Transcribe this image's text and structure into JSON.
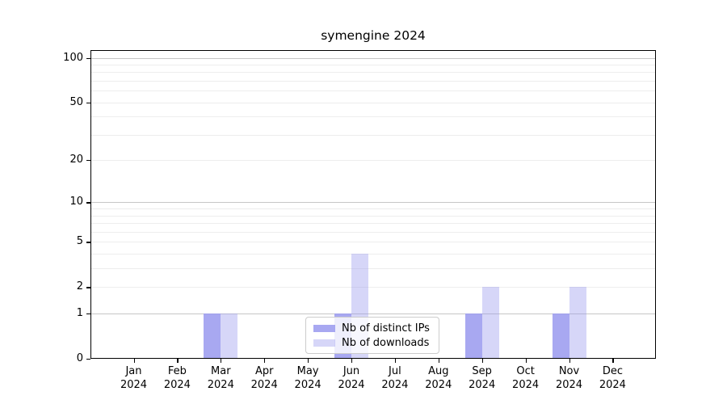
{
  "title": "symengine 2024",
  "legend": {
    "items": [
      {
        "label": "Nb of distinct IPs",
        "color": "rgba(153,153,238,0.85)"
      },
      {
        "label": "Nb of downloads",
        "color": "rgba(153,153,238,0.40)"
      }
    ]
  },
  "chart_data": {
    "type": "bar",
    "title": "symengine 2024",
    "categories": [
      "Jan 2024",
      "Feb 2024",
      "Mar 2024",
      "Apr 2024",
      "May 2024",
      "Jun 2024",
      "Jul 2024",
      "Aug 2024",
      "Sep 2024",
      "Oct 2024",
      "Nov 2024",
      "Dec 2024"
    ],
    "x_tick_months": [
      "Jan",
      "Feb",
      "Mar",
      "Apr",
      "May",
      "Jun",
      "Jul",
      "Aug",
      "Sep",
      "Oct",
      "Nov",
      "Dec"
    ],
    "x_tick_year": "2024",
    "series": [
      {
        "name": "Nb of distinct IPs",
        "color": "rgba(153,153,238,0.85)",
        "values": [
          0,
          0,
          1,
          0,
          0,
          1,
          0,
          0,
          1,
          0,
          1,
          0
        ]
      },
      {
        "name": "Nb of downloads",
        "color": "rgba(153,153,238,0.40)",
        "values": [
          0,
          0,
          1,
          0,
          0,
          4,
          0,
          0,
          2,
          0,
          2,
          0
        ]
      }
    ],
    "xlabel": "",
    "ylabel": "",
    "yscale": "log10(1+x)",
    "ylim": [
      0,
      112.7
    ],
    "yticks_labeled": [
      0,
      1,
      2,
      5,
      10,
      20,
      50,
      100
    ],
    "gridlines_major": [
      1,
      10,
      100
    ],
    "gridlines_minor": [
      2,
      3,
      4,
      5,
      6,
      7,
      8,
      9,
      20,
      30,
      40,
      50,
      60,
      70,
      80,
      90
    ],
    "grid": true,
    "legend_position": "lower center"
  },
  "colors": {
    "background": "#ffffff",
    "axis": "#000000",
    "text": "#000000",
    "grid_major": "#c6c6c6",
    "grid_minor": "#ededed",
    "legend_border": "#cccccc",
    "legend_background": "rgba(255,255,255,0.8)"
  }
}
